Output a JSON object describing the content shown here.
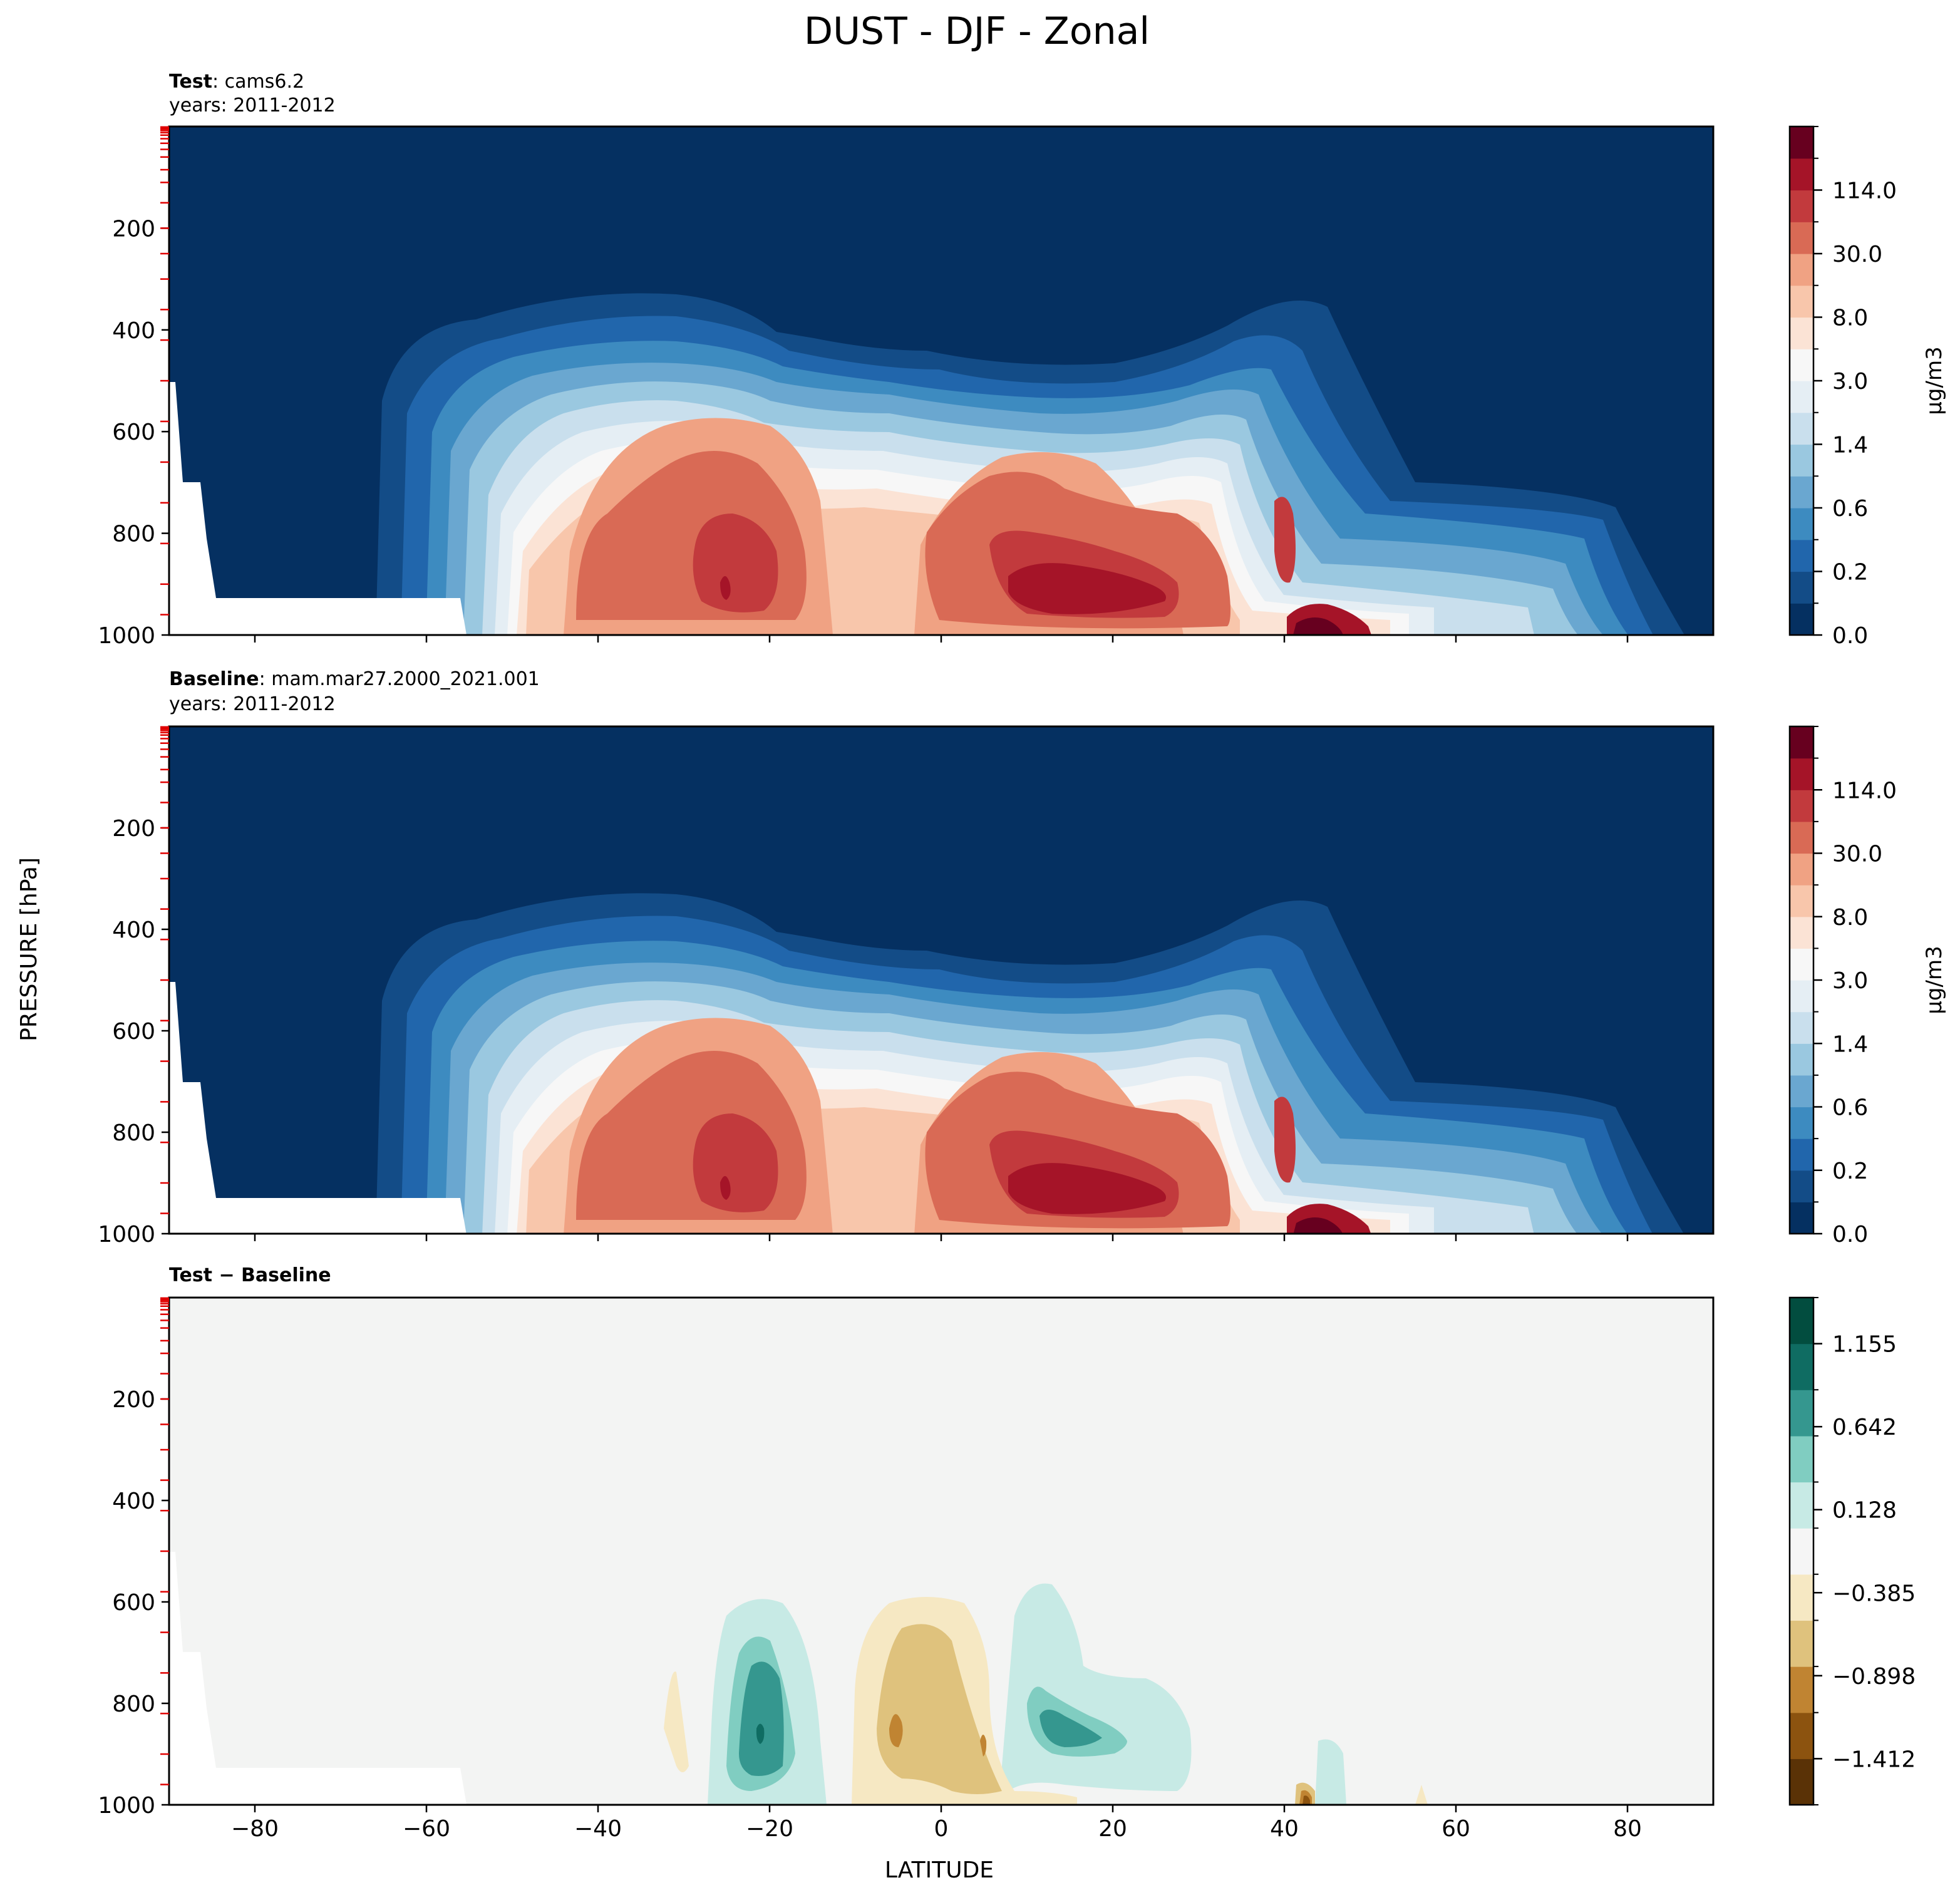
{
  "figure": {
    "title": "DUST - DJF - Zonal",
    "shared_ylabel": "PRESSURE [hPa]",
    "shared_xlabel": "LATITUDE"
  },
  "chart_data": [
    {
      "type": "contour",
      "id": "test",
      "title_bold": "Test",
      "title_rest": ": cams6.2",
      "subtitle": "years: 2011-2012",
      "x_ticks": [
        -80,
        -60,
        -40,
        -20,
        0,
        20,
        40,
        60,
        80
      ],
      "y_ticks": [
        200,
        400,
        600,
        800,
        1000
      ],
      "xlim": [
        -90,
        90
      ],
      "ylim": [
        1000,
        0
      ],
      "y_inverted": true,
      "colorbar": {
        "label": "μg/m3",
        "colormap": "RdBu_r",
        "colors": [
          "#053061",
          "#134c87",
          "#2166ac",
          "#3d8bc0",
          "#6aa7d0",
          "#9ac8e0",
          "#c9dfed",
          "#e5eef4",
          "#f7f7f7",
          "#fbe3d5",
          "#f8c6ab",
          "#f0a283",
          "#d96a55",
          "#c23a3d",
          "#a51428",
          "#67001f"
        ],
        "tick_labels": [
          "0.0",
          "0.2",
          "0.6",
          "1.4",
          "3.0",
          "8.0",
          "30.0",
          "114.0"
        ]
      },
      "regions": [
        {
          "level": 0.0,
          "lat": [
            -90,
            90
          ],
          "pressure": [
            0,
            1000
          ],
          "note": "background"
        },
        {
          "level": 0.2,
          "lat": [
            -66,
            86
          ],
          "pressure": [
            330,
            1000
          ]
        },
        {
          "level": 3.0,
          "lat": [
            -50,
            52
          ],
          "pressure": [
            500,
            1000
          ]
        },
        {
          "level": 30.0,
          "lat": [
            -28,
            -20
          ],
          "pressure": [
            790,
            950
          ]
        },
        {
          "level": 30.0,
          "lat": [
            5,
            28
          ],
          "pressure": [
            810,
            990
          ]
        },
        {
          "level": 114.0,
          "lat": [
            41,
            46
          ],
          "pressure": [
            970,
            1000
          ]
        }
      ]
    },
    {
      "type": "contour",
      "id": "baseline",
      "title_bold": "Baseline",
      "title_rest": ": mam.mar27.2000_2021.001",
      "subtitle": "years: 2011-2012",
      "x_ticks": [
        -80,
        -60,
        -40,
        -20,
        0,
        20,
        40,
        60,
        80
      ],
      "y_ticks": [
        200,
        400,
        600,
        800,
        1000
      ],
      "xlim": [
        -90,
        90
      ],
      "ylim": [
        1000,
        0
      ],
      "y_inverted": true,
      "colorbar": {
        "label": "μg/m3",
        "colormap": "RdBu_r",
        "colors": [
          "#053061",
          "#134c87",
          "#2166ac",
          "#3d8bc0",
          "#6aa7d0",
          "#9ac8e0",
          "#c9dfed",
          "#e5eef4",
          "#f7f7f7",
          "#fbe3d5",
          "#f8c6ab",
          "#f0a283",
          "#d96a55",
          "#c23a3d",
          "#a51428",
          "#67001f"
        ],
        "tick_labels": [
          "0.0",
          "0.2",
          "0.6",
          "1.4",
          "3.0",
          "8.0",
          "30.0",
          "114.0"
        ]
      },
      "regions": [
        {
          "level": 0.0,
          "lat": [
            -90,
            90
          ],
          "pressure": [
            0,
            1000
          ],
          "note": "background"
        },
        {
          "level": 0.2,
          "lat": [
            -66,
            86
          ],
          "pressure": [
            330,
            1000
          ]
        },
        {
          "level": 3.0,
          "lat": [
            -50,
            52
          ],
          "pressure": [
            500,
            1000
          ]
        },
        {
          "level": 30.0,
          "lat": [
            -28,
            -20
          ],
          "pressure": [
            790,
            950
          ]
        },
        {
          "level": 30.0,
          "lat": [
            5,
            28
          ],
          "pressure": [
            810,
            990
          ]
        },
        {
          "level": 114.0,
          "lat": [
            41,
            46
          ],
          "pressure": [
            970,
            1000
          ]
        }
      ]
    },
    {
      "type": "contour",
      "id": "diff",
      "title_bold": "Test − Baseline",
      "title_rest": "",
      "subtitle": "",
      "x_ticks": [
        -80,
        -60,
        -40,
        -20,
        0,
        20,
        40,
        60,
        80
      ],
      "y_ticks": [
        200,
        400,
        600,
        800,
        1000
      ],
      "xlim": [
        -90,
        90
      ],
      "ylim": [
        1000,
        0
      ],
      "y_inverted": true,
      "colorbar": {
        "label": "",
        "colormap": "BrBG",
        "colors": [
          "#5a3206",
          "#8c530f",
          "#c08432",
          "#dfc27d",
          "#f6e8c3",
          "#f5f5f5",
          "#c7eae5",
          "#80cdc1",
          "#35978f",
          "#0f6c62",
          "#024d3f"
        ],
        "tick_labels": [
          "−1.412",
          "−0.898",
          "−0.385",
          "0.128",
          "0.642",
          "1.155"
        ]
      },
      "regions": [
        {
          "level": 0.128,
          "lat": [
            -24,
            -16
          ],
          "pressure": [
            560,
            960
          ],
          "sign": "positive"
        },
        {
          "level": 0.642,
          "lat": [
            -22,
            -18
          ],
          "pressure": [
            680,
            880
          ],
          "sign": "positive"
        },
        {
          "level": -0.385,
          "lat": [
            -10,
            0
          ],
          "pressure": [
            560,
            880
          ],
          "sign": "negative"
        },
        {
          "level": 0.128,
          "lat": [
            10,
            25
          ],
          "pressure": [
            720,
            900
          ],
          "sign": "positive"
        },
        {
          "level": -1.412,
          "lat": [
            42,
            44
          ],
          "pressure": [
            960,
            1000
          ],
          "sign": "negative"
        }
      ]
    }
  ]
}
